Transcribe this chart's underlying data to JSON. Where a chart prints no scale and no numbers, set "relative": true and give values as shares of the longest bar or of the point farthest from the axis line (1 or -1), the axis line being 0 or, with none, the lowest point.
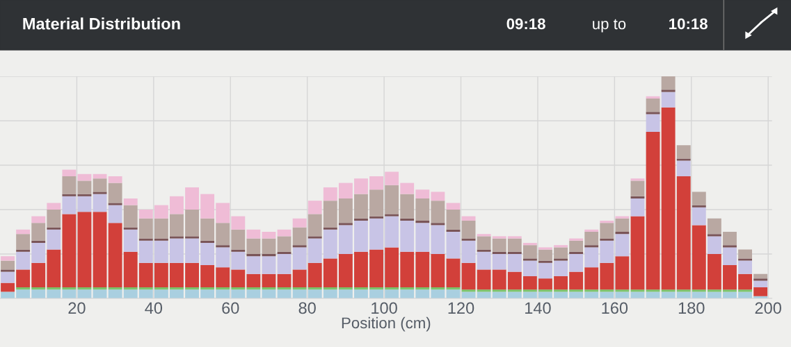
{
  "chart_data": {
    "type": "bar",
    "title": "Material Distribution",
    "annotations": [
      "09:18",
      "up to",
      "10:18"
    ],
    "xlabel": "Position (cm)",
    "relative": true,
    "stacked": true,
    "grid": true,
    "legend": false,
    "tick_labels": "x",
    "x": [
      2,
      6,
      10,
      14,
      18,
      22,
      26,
      30,
      34,
      38,
      42,
      46,
      50,
      54,
      58,
      62,
      66,
      70,
      74,
      78,
      82,
      86,
      90,
      94,
      98,
      102,
      106,
      110,
      114,
      118,
      122,
      126,
      130,
      134,
      138,
      142,
      146,
      150,
      154,
      158,
      162,
      166,
      170,
      174,
      178,
      182,
      186,
      190,
      194,
      198
    ],
    "xlim": [
      0,
      201
    ],
    "xticks": [
      20,
      40,
      60,
      80,
      100,
      120,
      140,
      160,
      180,
      200
    ],
    "series": [
      {
        "color": "#a9cfe0",
        "values": [
          0.03,
          0.04,
          0.04,
          0.04,
          0.04,
          0.04,
          0.04,
          0.04,
          0.04,
          0.04,
          0.04,
          0.04,
          0.04,
          0.04,
          0.04,
          0.04,
          0.04,
          0.04,
          0.04,
          0.04,
          0.04,
          0.04,
          0.04,
          0.04,
          0.04,
          0.04,
          0.04,
          0.04,
          0.04,
          0.04,
          0.03,
          0.03,
          0.03,
          0.03,
          0.03,
          0.03,
          0.03,
          0.03,
          0.03,
          0.03,
          0.03,
          0.03,
          0.03,
          0.03,
          0.03,
          0.03,
          0.03,
          0.03,
          0.03,
          0.01
        ]
      },
      {
        "color": "#7cc36a",
        "values": [
          0,
          0.01,
          0.01,
          0.01,
          0.01,
          0.01,
          0.01,
          0.01,
          0.01,
          0.01,
          0.01,
          0.01,
          0.01,
          0.01,
          0.01,
          0.01,
          0.01,
          0.01,
          0.01,
          0.01,
          0.01,
          0.01,
          0.01,
          0.01,
          0.01,
          0.01,
          0.01,
          0.01,
          0.01,
          0.01,
          0.01,
          0.01,
          0.01,
          0.01,
          0.01,
          0.01,
          0.01,
          0.01,
          0.01,
          0.01,
          0.01,
          0.01,
          0.01,
          0.01,
          0.01,
          0.01,
          0.01,
          0.01,
          0.01,
          0
        ]
      },
      {
        "color": "#d2403a",
        "values": [
          0.04,
          0.08,
          0.11,
          0.17,
          0.33,
          0.34,
          0.34,
          0.29,
          0.16,
          0.11,
          0.11,
          0.11,
          0.11,
          0.1,
          0.09,
          0.08,
          0.06,
          0.06,
          0.06,
          0.08,
          0.11,
          0.13,
          0.15,
          0.16,
          0.17,
          0.18,
          0.16,
          0.16,
          0.15,
          0.13,
          0.12,
          0.09,
          0.09,
          0.08,
          0.06,
          0.05,
          0.06,
          0.08,
          0.1,
          0.12,
          0.15,
          0.33,
          0.71,
          0.82,
          0.51,
          0.29,
          0.16,
          0.11,
          0.07,
          0.04
        ]
      },
      {
        "color": "#c8c4e6",
        "values": [
          0.05,
          0.08,
          0.09,
          0.09,
          0.08,
          0.07,
          0.08,
          0.08,
          0.1,
          0.1,
          0.1,
          0.11,
          0.11,
          0.1,
          0.09,
          0.08,
          0.08,
          0.08,
          0.09,
          0.1,
          0.11,
          0.13,
          0.13,
          0.14,
          0.14,
          0.14,
          0.14,
          0.13,
          0.13,
          0.12,
          0.1,
          0.08,
          0.07,
          0.08,
          0.07,
          0.07,
          0.07,
          0.08,
          0.09,
          0.1,
          0.1,
          0.08,
          0.08,
          0.07,
          0.07,
          0.08,
          0.08,
          0.08,
          0.06,
          0.03
        ]
      },
      {
        "color": "#7a5558",
        "values": [
          0.01,
          0.01,
          0.01,
          0.01,
          0.01,
          0.01,
          0.01,
          0.01,
          0.01,
          0.01,
          0.01,
          0.01,
          0.01,
          0.01,
          0.01,
          0.01,
          0.01,
          0.01,
          0.01,
          0.01,
          0.01,
          0.01,
          0.01,
          0.01,
          0.01,
          0.01,
          0.01,
          0.01,
          0.01,
          0.01,
          0.01,
          0.01,
          0.01,
          0.01,
          0.01,
          0.01,
          0.01,
          0.01,
          0.01,
          0.01,
          0.01,
          0.01,
          0.01,
          0.01,
          0.01,
          0.01,
          0.01,
          0.01,
          0.01,
          0.01
        ]
      },
      {
        "color": "#b9a8a2",
        "values": [
          0.04,
          0.07,
          0.08,
          0.08,
          0.08,
          0.06,
          0.06,
          0.09,
          0.1,
          0.09,
          0.09,
          0.1,
          0.12,
          0.1,
          0.1,
          0.09,
          0.07,
          0.07,
          0.07,
          0.08,
          0.1,
          0.12,
          0.11,
          0.11,
          0.12,
          0.13,
          0.11,
          0.1,
          0.1,
          0.09,
          0.08,
          0.06,
          0.06,
          0.06,
          0.06,
          0.05,
          0.05,
          0.05,
          0.06,
          0.07,
          0.06,
          0.07,
          0.06,
          0.06,
          0.06,
          0.06,
          0.07,
          0.06,
          0.04,
          0.02
        ]
      },
      {
        "color": "#efbcd6",
        "values": [
          0.02,
          0.02,
          0.03,
          0.03,
          0.03,
          0.03,
          0.02,
          0.03,
          0.03,
          0.04,
          0.06,
          0.08,
          0.1,
          0.11,
          0.09,
          0.06,
          0.04,
          0.03,
          0.03,
          0.04,
          0.06,
          0.06,
          0.07,
          0.07,
          0.06,
          0.06,
          0.05,
          0.04,
          0.04,
          0.03,
          0.02,
          0.01,
          0.01,
          0.01,
          0.01,
          0.01,
          0.01,
          0.01,
          0.01,
          0.01,
          0.01,
          0.01,
          0.01,
          0,
          0,
          0,
          0,
          0,
          0,
          0
        ]
      }
    ]
  }
}
